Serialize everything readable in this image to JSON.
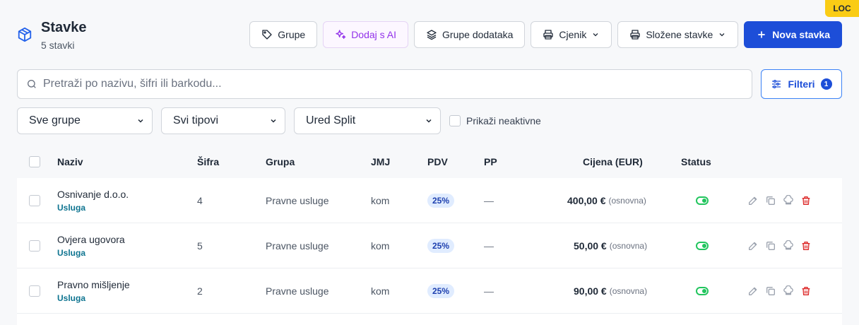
{
  "badge": "LOC",
  "header": {
    "title": "Stavke",
    "subtitle": "5 stavki",
    "actions": {
      "groups": "Grupe",
      "ai": "Dodaj s AI",
      "addon_groups": "Grupe dodataka",
      "pricelist": "Cjenik",
      "composite": "Složene stavke",
      "new_item": "Nova stavka"
    }
  },
  "search": {
    "placeholder": "Pretraži po nazivu, šifri ili barkodu...",
    "value": ""
  },
  "filters_button": {
    "label": "Filteri",
    "count": "1"
  },
  "filters": {
    "group_select": "Sve grupe",
    "type_select": "Svi tipovi",
    "office_select": "Ured Split",
    "show_inactive": "Prikaži neaktivne"
  },
  "table": {
    "columns": {
      "name": "Naziv",
      "code": "Šifra",
      "group": "Grupa",
      "unit": "JMJ",
      "vat": "PDV",
      "pp": "PP",
      "price": "Cijena (EUR)",
      "status": "Status"
    },
    "rows": [
      {
        "name": "Osnivanje d.o.o.",
        "type": "Usluga",
        "code": "4",
        "group": "Pravne usluge",
        "unit": "kom",
        "vat": "25%",
        "pp": "—",
        "price": "400,00 €",
        "price_note": "(osnovna)",
        "status": "active"
      },
      {
        "name": "Ovjera ugovora",
        "type": "Usluga",
        "code": "5",
        "group": "Pravne usluge",
        "unit": "kom",
        "vat": "25%",
        "pp": "—",
        "price": "50,00 €",
        "price_note": "(osnovna)",
        "status": "active"
      },
      {
        "name": "Pravno mišljenje",
        "type": "Usluga",
        "code": "2",
        "group": "Pravne usluge",
        "unit": "kom",
        "vat": "25%",
        "pp": "—",
        "price": "90,00 €",
        "price_note": "(osnovna)",
        "status": "active"
      }
    ]
  },
  "colors": {
    "primary": "#1d4ed8",
    "ai": "#9333ea",
    "success": "#22c55e",
    "danger": "#dc2626",
    "loc": "#facc15"
  }
}
